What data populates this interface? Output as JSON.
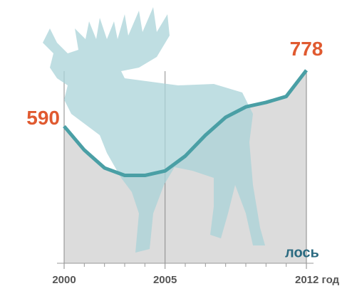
{
  "chart_data": {
    "type": "line",
    "x": [
      2000,
      2001,
      2002,
      2003,
      2004,
      2005,
      2006,
      2007,
      2008,
      2009,
      2010,
      2011,
      2012
    ],
    "values": [
      590,
      510,
      450,
      425,
      425,
      440,
      490,
      560,
      620,
      655,
      670,
      690,
      778
    ],
    "series_name": "лось",
    "color": "#4a9fa5",
    "fill_color": "#dcdcdc",
    "label_color": "#e05a30",
    "xlim": [
      2000,
      2012
    ],
    "xticks": [
      2000,
      2005,
      {
        "value": 2012,
        "label": "2012 год"
      }
    ],
    "minor_xticks": [
      2001,
      2002,
      2003,
      2004,
      2006,
      2007,
      2008,
      2009,
      2010,
      2011
    ],
    "ylim": [
      130,
      990
    ]
  }
}
